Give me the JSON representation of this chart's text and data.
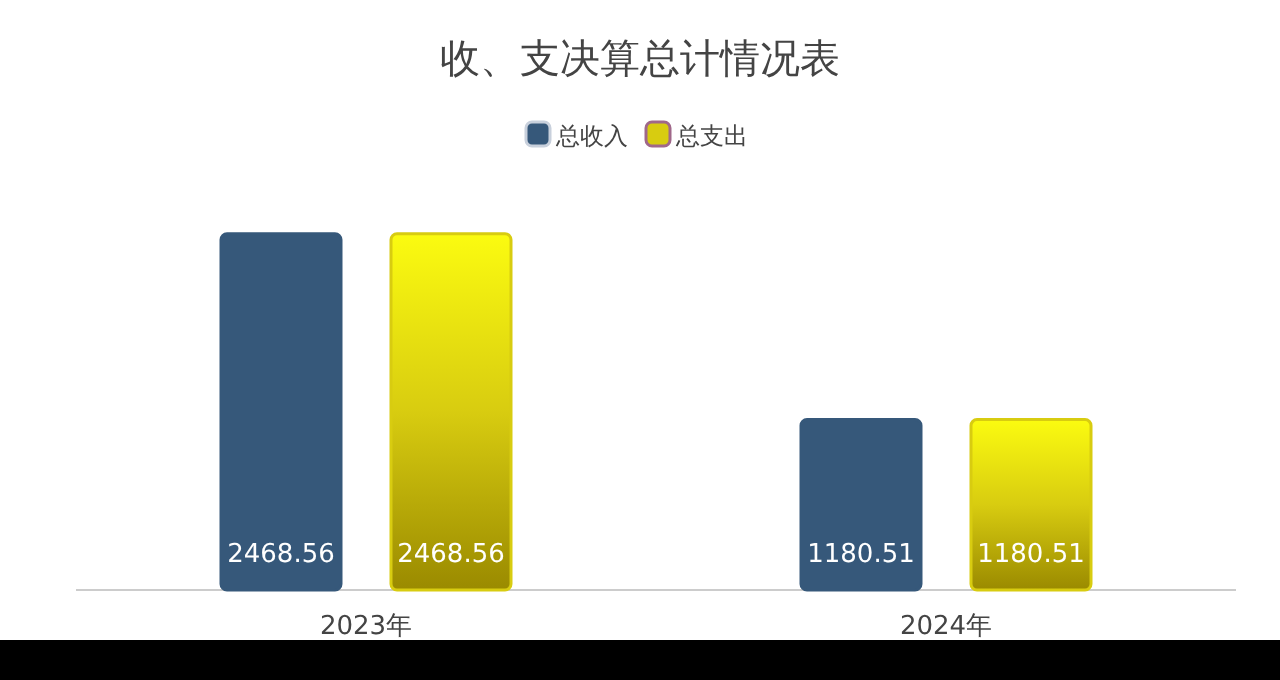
{
  "chart_data": {
    "type": "bar",
    "title": "收、支决算总计情况表",
    "categories": [
      "2023年",
      "2024年"
    ],
    "series": [
      {
        "name": "总收入",
        "color": "#36587a",
        "values": [
          2468.56,
          1180.51
        ]
      },
      {
        "name": "总支出",
        "color": "#d8cc10",
        "values": [
          2468.56,
          1180.51
        ]
      }
    ],
    "data_labels": true,
    "legend": "top"
  }
}
